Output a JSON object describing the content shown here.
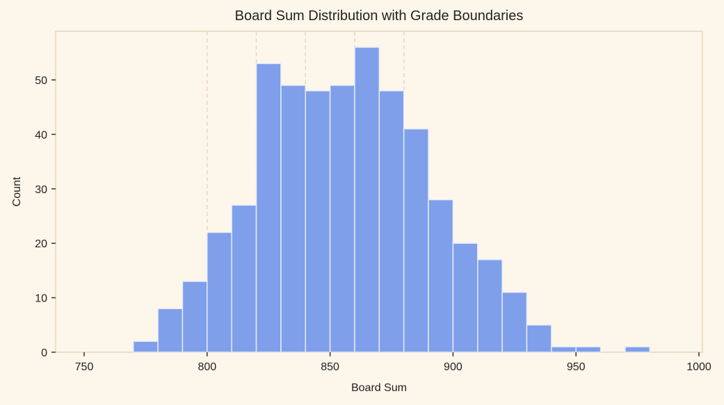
{
  "chart_data": {
    "type": "bar",
    "title": "Board Sum Distribution with Grade Boundaries",
    "xlabel": "Board Sum",
    "ylabel": "Count",
    "xlim": [
      737,
      1002
    ],
    "ylim": [
      0,
      59
    ],
    "xticks": [
      750,
      800,
      850,
      900,
      950,
      1000
    ],
    "yticks": [
      0,
      10,
      20,
      30,
      40,
      50
    ],
    "bin_width": 10,
    "bins": [
      770,
      780,
      790,
      800,
      810,
      820,
      830,
      840,
      850,
      860,
      870,
      880,
      890,
      900,
      910,
      920,
      930,
      940,
      950,
      960,
      970
    ],
    "values": [
      2,
      8,
      13,
      22,
      27,
      53,
      49,
      48,
      49,
      56,
      48,
      41,
      28,
      20,
      17,
      11,
      5,
      1,
      1,
      0,
      1
    ],
    "grade_boundaries": [
      800,
      820,
      840,
      860,
      880
    ],
    "bar_color": "#7f9fea",
    "boundary_color": "#e8d8c0",
    "grid": false
  }
}
